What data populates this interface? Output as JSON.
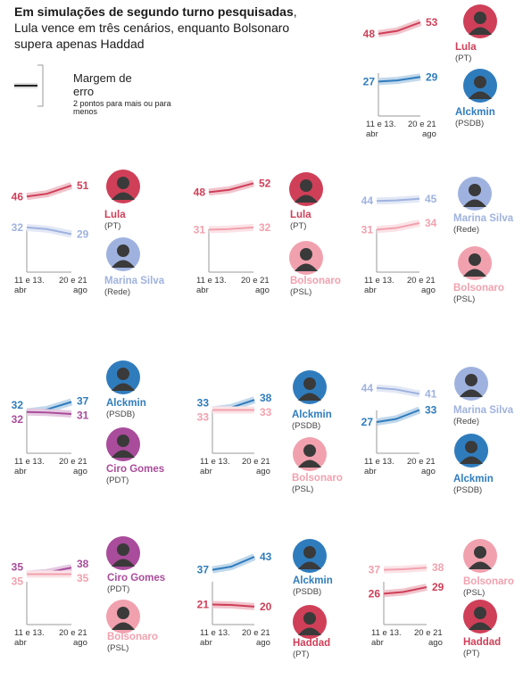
{
  "headline": {
    "bold_part": "Em simulações de segundo turno pesquisadas",
    "rest": ", Lula vence em três cenários, enquanto Bolsonaro supera apenas Haddad"
  },
  "legend": {
    "title": "Margem de erro",
    "subtitle": "2 pontos para mais ou para menos"
  },
  "colors": {
    "Lula": "#cf3f58",
    "Alckmin": "#2f7cbd",
    "Marina Silva": "#9fb2df",
    "Bolsonaro": "#f1a1ae",
    "Ciro Gomes": "#a94c9b",
    "Haddad": "#cf3f58"
  },
  "chart_data": [
    {
      "type": "line",
      "x": [
        "11 e 13. abr",
        "20 e 21 ago"
      ],
      "series": [
        {
          "name": "Lula",
          "party": "(PT)",
          "values": [
            48,
            53
          ]
        },
        {
          "name": "Alckmin",
          "party": "(PSDB)",
          "values": [
            27,
            29
          ]
        }
      ]
    },
    {
      "type": "line",
      "x": [
        "11 e 13. abr",
        "20 e 21 ago"
      ],
      "series": [
        {
          "name": "Lula",
          "party": "(PT)",
          "values": [
            46,
            51
          ]
        },
        {
          "name": "Marina Silva",
          "party": "(Rede)",
          "values": [
            32,
            29
          ]
        }
      ]
    },
    {
      "type": "line",
      "x": [
        "11 e 13. abr",
        "20 e 21 ago"
      ],
      "series": [
        {
          "name": "Lula",
          "party": "(PT)",
          "values": [
            48,
            52
          ]
        },
        {
          "name": "Bolsonaro",
          "party": "(PSL)",
          "values": [
            31,
            32
          ]
        }
      ]
    },
    {
      "type": "line",
      "x": [
        "11 e 13. abr",
        "20 e 21 ago"
      ],
      "series": [
        {
          "name": "Marina Silva",
          "party": "(Rede)",
          "values": [
            44,
            45
          ]
        },
        {
          "name": "Bolsonaro",
          "party": "(PSL)",
          "values": [
            31,
            34
          ]
        }
      ]
    },
    {
      "type": "line",
      "x": [
        "11 e 13. abr",
        "20 e 21 ago"
      ],
      "series": [
        {
          "name": "Alckmin",
          "party": "(PSDB)",
          "values": [
            32,
            37
          ]
        },
        {
          "name": "Ciro Gomes",
          "party": "(PDT)",
          "values": [
            32,
            31
          ]
        }
      ]
    },
    {
      "type": "line",
      "x": [
        "11 e 13. abr",
        "20 e 21 ago"
      ],
      "series": [
        {
          "name": "Alckmin",
          "party": "(PSDB)",
          "values": [
            33,
            38
          ]
        },
        {
          "name": "Bolsonaro",
          "party": "(PSL)",
          "values": [
            33,
            33
          ]
        }
      ]
    },
    {
      "type": "line",
      "x": [
        "11 e 13. abr",
        "20 e 21 ago"
      ],
      "series": [
        {
          "name": "Marina Silva",
          "party": "(Rede)",
          "values": [
            44,
            41
          ]
        },
        {
          "name": "Alckmin",
          "party": "(PSDB)",
          "values": [
            27,
            33
          ]
        }
      ]
    },
    {
      "type": "line",
      "x": [
        "11 e 13. abr",
        "20 e 21 ago"
      ],
      "series": [
        {
          "name": "Ciro Gomes",
          "party": "(PDT)",
          "values": [
            35,
            38
          ]
        },
        {
          "name": "Bolsonaro",
          "party": "(PSL)",
          "values": [
            35,
            35
          ]
        }
      ]
    },
    {
      "type": "line",
      "x": [
        "11 e 13. abr",
        "20 e 21 ago"
      ],
      "series": [
        {
          "name": "Alckmin",
          "party": "(PSDB)",
          "values": [
            37,
            43
          ]
        },
        {
          "name": "Haddad",
          "party": "(PT)",
          "values": [
            21,
            20
          ]
        }
      ]
    },
    {
      "type": "line",
      "x": [
        "11 e 13. abr",
        "20 e 21 ago"
      ],
      "series": [
        {
          "name": "Bolsonaro",
          "party": "(PSL)",
          "values": [
            37,
            38
          ]
        },
        {
          "name": "Haddad",
          "party": "(PT)",
          "values": [
            26,
            29
          ]
        }
      ]
    }
  ]
}
